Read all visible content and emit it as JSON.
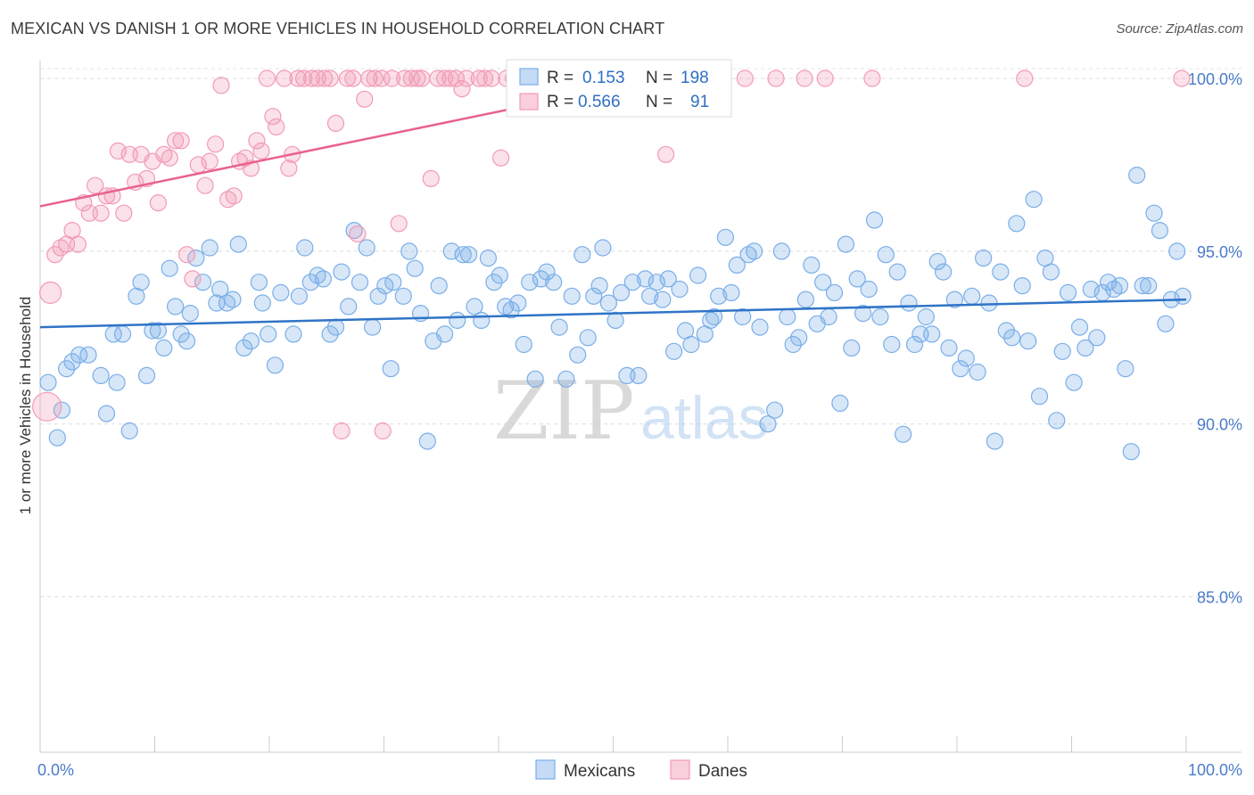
{
  "header": {
    "title": "MEXICAN VS DANISH 1 OR MORE VEHICLES IN HOUSEHOLD CORRELATION CHART",
    "source": "Source: ZipAtlas.com"
  },
  "watermark": {
    "zip": "ZIP",
    "atlas": "atlas"
  },
  "stats_legend": {
    "rows": [
      {
        "r_label": "R =",
        "r_value": "0.153",
        "n_label": "N =",
        "n_value": "198",
        "color": "#7aaee8"
      },
      {
        "r_label": "R =",
        "r_value": "0.566",
        "n_label": "N =",
        "n_value": "91",
        "color": "#f29ab5"
      }
    ]
  },
  "bottom_legend": [
    {
      "label": "Mexicans",
      "color": "#7aaee8"
    },
    {
      "label": "Danes",
      "color": "#f29ab5"
    }
  ],
  "chart_data": {
    "type": "scatter",
    "title": "MEXICAN VS DANISH 1 OR MORE VEHICLES IN HOUSEHOLD CORRELATION CHART",
    "xlabel": "",
    "ylabel": "1 or more Vehicles in Household",
    "xlim": [
      0,
      100
    ],
    "ylim": [
      80.5,
      100.8
    ],
    "x_tick_labels": [
      "0.0%",
      "100.0%"
    ],
    "y_ticks": [
      85,
      90,
      95,
      100
    ],
    "y_tick_labels": [
      "85.0%",
      "90.0%",
      "95.0%",
      "100.0%"
    ],
    "grid": true,
    "series": [
      {
        "name": "Mexicans",
        "color": "#7aaee8",
        "line_color": "#2f74c6",
        "trend": [
          [
            0,
            92.8
          ],
          [
            100,
            93.6
          ]
        ],
        "points": [
          [
            0.7,
            91.2
          ],
          [
            1.5,
            89.6
          ],
          [
            1.9,
            90.4
          ],
          [
            2.3,
            91.6
          ],
          [
            2.8,
            91.8
          ],
          [
            3.4,
            92.0
          ],
          [
            4.2,
            92.0
          ],
          [
            5.3,
            91.4
          ],
          [
            5.8,
            90.3
          ],
          [
            6.4,
            92.6
          ],
          [
            6.7,
            91.2
          ],
          [
            7.2,
            92.6
          ],
          [
            7.8,
            89.8
          ],
          [
            8.4,
            93.7
          ],
          [
            8.8,
            94.1
          ],
          [
            9.3,
            91.4
          ],
          [
            9.8,
            92.7
          ],
          [
            10.3,
            92.7
          ],
          [
            10.8,
            92.2
          ],
          [
            11.3,
            94.5
          ],
          [
            11.8,
            93.4
          ],
          [
            12.3,
            92.6
          ],
          [
            12.8,
            92.4
          ],
          [
            13.1,
            93.2
          ],
          [
            13.6,
            94.8
          ],
          [
            14.2,
            94.1
          ],
          [
            14.8,
            95.1
          ],
          [
            15.4,
            93.5
          ],
          [
            15.7,
            93.9
          ],
          [
            16.3,
            93.5
          ],
          [
            16.8,
            93.6
          ],
          [
            17.3,
            95.2
          ],
          [
            17.8,
            92.2
          ],
          [
            18.4,
            92.4
          ],
          [
            19.1,
            94.1
          ],
          [
            19.4,
            93.5
          ],
          [
            19.9,
            92.6
          ],
          [
            20.5,
            91.7
          ],
          [
            21.0,
            93.8
          ],
          [
            22.1,
            92.6
          ],
          [
            22.6,
            93.7
          ],
          [
            23.1,
            95.1
          ],
          [
            23.6,
            94.1
          ],
          [
            24.2,
            94.3
          ],
          [
            24.7,
            94.2
          ],
          [
            25.3,
            92.6
          ],
          [
            25.8,
            92.8
          ],
          [
            26.3,
            94.4
          ],
          [
            26.9,
            93.4
          ],
          [
            27.4,
            95.6
          ],
          [
            27.9,
            94.1
          ],
          [
            28.5,
            95.1
          ],
          [
            29.0,
            92.8
          ],
          [
            29.5,
            93.7
          ],
          [
            30.1,
            94.0
          ],
          [
            30.6,
            91.6
          ],
          [
            30.8,
            94.1
          ],
          [
            31.7,
            93.7
          ],
          [
            32.2,
            95.0
          ],
          [
            32.7,
            94.5
          ],
          [
            33.2,
            93.2
          ],
          [
            33.8,
            89.5
          ],
          [
            34.3,
            92.4
          ],
          [
            34.8,
            94.0
          ],
          [
            35.3,
            92.6
          ],
          [
            35.9,
            95.0
          ],
          [
            36.4,
            93.0
          ],
          [
            36.9,
            94.9
          ],
          [
            37.4,
            94.9
          ],
          [
            37.9,
            93.4
          ],
          [
            38.5,
            93.0
          ],
          [
            39.1,
            94.8
          ],
          [
            39.6,
            94.1
          ],
          [
            40.1,
            94.3
          ],
          [
            40.6,
            93.4
          ],
          [
            41.1,
            93.3
          ],
          [
            41.7,
            93.5
          ],
          [
            42.2,
            92.3
          ],
          [
            42.7,
            94.1
          ],
          [
            43.2,
            91.3
          ],
          [
            43.7,
            94.2
          ],
          [
            44.2,
            94.4
          ],
          [
            44.8,
            94.1
          ],
          [
            45.3,
            92.8
          ],
          [
            45.9,
            91.3
          ],
          [
            46.4,
            93.7
          ],
          [
            46.9,
            92.0
          ],
          [
            47.3,
            94.9
          ],
          [
            47.8,
            92.5
          ],
          [
            48.3,
            93.7
          ],
          [
            48.8,
            94.0
          ],
          [
            49.1,
            95.1
          ],
          [
            49.6,
            93.5
          ],
          [
            50.2,
            93.0
          ],
          [
            50.7,
            93.8
          ],
          [
            51.2,
            91.4
          ],
          [
            51.7,
            94.1
          ],
          [
            52.2,
            91.4
          ],
          [
            52.8,
            94.2
          ],
          [
            53.2,
            93.7
          ],
          [
            53.8,
            94.1
          ],
          [
            54.3,
            93.6
          ],
          [
            54.8,
            94.2
          ],
          [
            55.3,
            92.1
          ],
          [
            55.8,
            93.9
          ],
          [
            56.3,
            92.7
          ],
          [
            56.8,
            92.3
          ],
          [
            57.4,
            94.3
          ],
          [
            58.0,
            92.6
          ],
          [
            58.5,
            93.0
          ],
          [
            58.8,
            93.1
          ],
          [
            59.2,
            93.7
          ],
          [
            59.8,
            95.4
          ],
          [
            60.3,
            93.8
          ],
          [
            60.8,
            94.6
          ],
          [
            61.3,
            93.1
          ],
          [
            61.8,
            94.9
          ],
          [
            62.3,
            95.0
          ],
          [
            62.8,
            92.8
          ],
          [
            63.5,
            90.0
          ],
          [
            64.1,
            90.4
          ],
          [
            64.7,
            95.0
          ],
          [
            65.2,
            93.1
          ],
          [
            65.7,
            92.3
          ],
          [
            66.2,
            92.5
          ],
          [
            66.8,
            93.6
          ],
          [
            67.3,
            94.6
          ],
          [
            67.8,
            92.9
          ],
          [
            68.3,
            94.1
          ],
          [
            68.8,
            93.1
          ],
          [
            69.3,
            93.8
          ],
          [
            69.8,
            90.6
          ],
          [
            70.3,
            95.2
          ],
          [
            70.8,
            92.2
          ],
          [
            71.3,
            94.2
          ],
          [
            71.8,
            93.2
          ],
          [
            72.3,
            93.9
          ],
          [
            72.8,
            95.9
          ],
          [
            73.3,
            93.1
          ],
          [
            73.8,
            94.9
          ],
          [
            74.3,
            92.3
          ],
          [
            74.8,
            94.4
          ],
          [
            75.3,
            89.7
          ],
          [
            75.8,
            93.5
          ],
          [
            76.3,
            92.3
          ],
          [
            76.8,
            92.6
          ],
          [
            77.3,
            93.1
          ],
          [
            77.8,
            92.6
          ],
          [
            78.3,
            94.7
          ],
          [
            78.8,
            94.4
          ],
          [
            79.3,
            92.2
          ],
          [
            79.8,
            93.6
          ],
          [
            80.3,
            91.6
          ],
          [
            80.8,
            91.9
          ],
          [
            81.3,
            93.7
          ],
          [
            81.8,
            91.5
          ],
          [
            82.3,
            94.8
          ],
          [
            82.8,
            93.5
          ],
          [
            83.3,
            89.5
          ],
          [
            83.8,
            94.4
          ],
          [
            84.3,
            92.7
          ],
          [
            84.8,
            92.5
          ],
          [
            85.2,
            95.8
          ],
          [
            85.7,
            94.0
          ],
          [
            86.2,
            92.4
          ],
          [
            86.7,
            96.5
          ],
          [
            87.2,
            90.8
          ],
          [
            87.7,
            94.8
          ],
          [
            88.2,
            94.4
          ],
          [
            88.7,
            90.1
          ],
          [
            89.2,
            92.1
          ],
          [
            89.7,
            93.8
          ],
          [
            90.2,
            91.2
          ],
          [
            90.7,
            92.8
          ],
          [
            91.2,
            92.2
          ],
          [
            91.7,
            93.9
          ],
          [
            92.2,
            92.5
          ],
          [
            92.7,
            93.8
          ],
          [
            93.2,
            94.1
          ],
          [
            93.7,
            93.9
          ],
          [
            94.2,
            94.0
          ],
          [
            94.7,
            91.6
          ],
          [
            95.2,
            89.2
          ],
          [
            95.7,
            97.2
          ],
          [
            96.2,
            94.0
          ],
          [
            96.7,
            94.0
          ],
          [
            97.2,
            96.1
          ],
          [
            97.7,
            95.6
          ],
          [
            98.2,
            92.9
          ],
          [
            98.7,
            93.6
          ],
          [
            99.2,
            95.0
          ],
          [
            99.7,
            93.7
          ]
        ]
      },
      {
        "name": "Danes",
        "color": "#f29ab5",
        "line_color": "#e8628d",
        "trend": [
          [
            0,
            96.3
          ],
          [
            54,
            100.0
          ]
        ],
        "points": [
          [
            0.6,
            90.5
          ],
          [
            0.9,
            93.8
          ],
          [
            1.3,
            94.9
          ],
          [
            1.8,
            95.1
          ],
          [
            2.3,
            95.2
          ],
          [
            2.8,
            95.6
          ],
          [
            3.3,
            95.2
          ],
          [
            3.8,
            96.4
          ],
          [
            4.3,
            96.1
          ],
          [
            4.8,
            96.9
          ],
          [
            5.3,
            96.1
          ],
          [
            5.8,
            96.6
          ],
          [
            6.3,
            96.6
          ],
          [
            6.8,
            97.9
          ],
          [
            7.3,
            96.1
          ],
          [
            7.8,
            97.8
          ],
          [
            8.3,
            97.0
          ],
          [
            8.8,
            97.8
          ],
          [
            9.3,
            97.1
          ],
          [
            9.8,
            97.6
          ],
          [
            10.3,
            96.4
          ],
          [
            10.8,
            97.8
          ],
          [
            11.3,
            97.7
          ],
          [
            11.8,
            98.2
          ],
          [
            12.3,
            98.2
          ],
          [
            12.8,
            94.9
          ],
          [
            13.3,
            94.2
          ],
          [
            13.8,
            97.5
          ],
          [
            14.4,
            96.9
          ],
          [
            14.8,
            97.6
          ],
          [
            15.3,
            98.1
          ],
          [
            15.8,
            99.8
          ],
          [
            16.4,
            96.5
          ],
          [
            16.9,
            96.6
          ],
          [
            17.4,
            97.6
          ],
          [
            17.9,
            97.7
          ],
          [
            18.4,
            97.4
          ],
          [
            18.9,
            98.2
          ],
          [
            19.3,
            97.9
          ],
          [
            19.8,
            100.0
          ],
          [
            20.3,
            98.9
          ],
          [
            20.6,
            98.6
          ],
          [
            21.3,
            100.0
          ],
          [
            21.7,
            97.4
          ],
          [
            22.0,
            97.8
          ],
          [
            22.5,
            100.0
          ],
          [
            23.0,
            100.0
          ],
          [
            23.7,
            100.0
          ],
          [
            24.2,
            100.0
          ],
          [
            24.8,
            100.0
          ],
          [
            25.3,
            100.0
          ],
          [
            25.8,
            98.7
          ],
          [
            26.3,
            89.8
          ],
          [
            26.8,
            100.0
          ],
          [
            27.3,
            100.0
          ],
          [
            27.7,
            95.5
          ],
          [
            28.3,
            99.4
          ],
          [
            28.7,
            100.0
          ],
          [
            29.2,
            100.0
          ],
          [
            29.8,
            100.0
          ],
          [
            29.9,
            89.8
          ],
          [
            30.7,
            100.0
          ],
          [
            31.3,
            95.8
          ],
          [
            31.8,
            100.0
          ],
          [
            32.4,
            100.0
          ],
          [
            32.9,
            100.0
          ],
          [
            33.3,
            100.0
          ],
          [
            34.1,
            97.1
          ],
          [
            34.7,
            100.0
          ],
          [
            35.3,
            100.0
          ],
          [
            35.8,
            100.0
          ],
          [
            36.3,
            100.0
          ],
          [
            36.8,
            99.7
          ],
          [
            37.2,
            100.0
          ],
          [
            38.3,
            100.0
          ],
          [
            38.8,
            100.0
          ],
          [
            39.4,
            100.0
          ],
          [
            40.2,
            97.7
          ],
          [
            40.7,
            100.0
          ],
          [
            41.3,
            100.0
          ],
          [
            41.8,
            100.0
          ],
          [
            42.3,
            100.0
          ],
          [
            53.4,
            100.0
          ],
          [
            54.0,
            100.0
          ],
          [
            54.6,
            97.8
          ],
          [
            58.8,
            100.0
          ],
          [
            61.5,
            100.0
          ],
          [
            64.2,
            100.0
          ],
          [
            66.7,
            100.0
          ],
          [
            68.5,
            100.0
          ],
          [
            72.6,
            100.0
          ],
          [
            85.9,
            100.0
          ],
          [
            99.6,
            100.0
          ]
        ]
      }
    ]
  }
}
